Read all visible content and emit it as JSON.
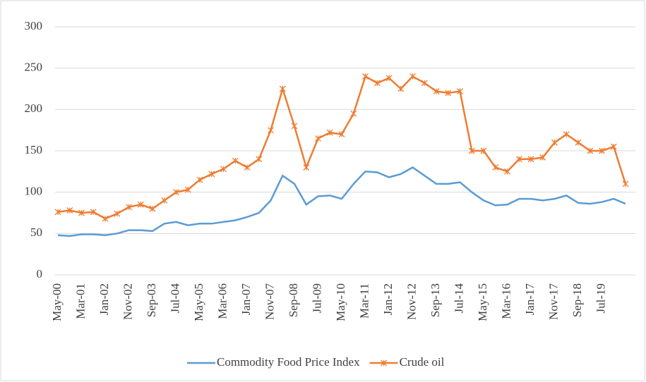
{
  "chart_data": {
    "type": "line",
    "categories": [
      "May-00",
      null,
      "Mar-01",
      null,
      "Jan-02",
      null,
      "Nov-02",
      null,
      "Sep-03",
      null,
      "Jul-04",
      null,
      "May-05",
      null,
      "Mar-06",
      null,
      "Jan-07",
      null,
      "Nov-07",
      null,
      "Sep-08",
      null,
      "Jul-09",
      null,
      "May-10",
      null,
      "Mar-11",
      null,
      "Jan-12",
      null,
      "Nov-12",
      null,
      "Sep-13",
      null,
      "Jul-14",
      null,
      "May-15",
      null,
      "Mar-16",
      null,
      "Jan-17",
      null,
      "Nov-17",
      null,
      "Sep-18",
      null,
      "Jul-19",
      null,
      null
    ],
    "series": [
      {
        "name": "Commodity Food Price Index",
        "color": "#5b9bd5",
        "marker": false,
        "values": [
          48,
          47,
          49,
          49,
          48,
          50,
          54,
          54,
          53,
          62,
          64,
          60,
          62,
          62,
          64,
          66,
          70,
          75,
          90,
          120,
          110,
          85,
          95,
          96,
          92,
          110,
          125,
          124,
          118,
          122,
          130,
          120,
          110,
          110,
          112,
          100,
          90,
          84,
          85,
          92,
          92,
          90,
          92,
          96,
          87,
          86,
          88,
          92,
          86
        ]
      },
      {
        "name": "Crude oil",
        "color": "#ed7d31",
        "marker": true,
        "values": [
          76,
          78,
          75,
          76,
          68,
          74,
          82,
          85,
          80,
          90,
          100,
          103,
          115,
          122,
          128,
          138,
          130,
          140,
          175,
          225,
          180,
          130,
          165,
          172,
          170,
          195,
          240,
          232,
          238,
          225,
          240,
          232,
          222,
          220,
          222,
          150,
          150,
          130,
          125,
          140,
          140,
          142,
          160,
          170,
          160,
          150,
          150,
          155,
          110
        ]
      }
    ],
    "ylim": [
      0,
      300
    ],
    "yticks": [
      0,
      50,
      100,
      150,
      200,
      250,
      300
    ],
    "grid": true,
    "legend": "bottom"
  }
}
